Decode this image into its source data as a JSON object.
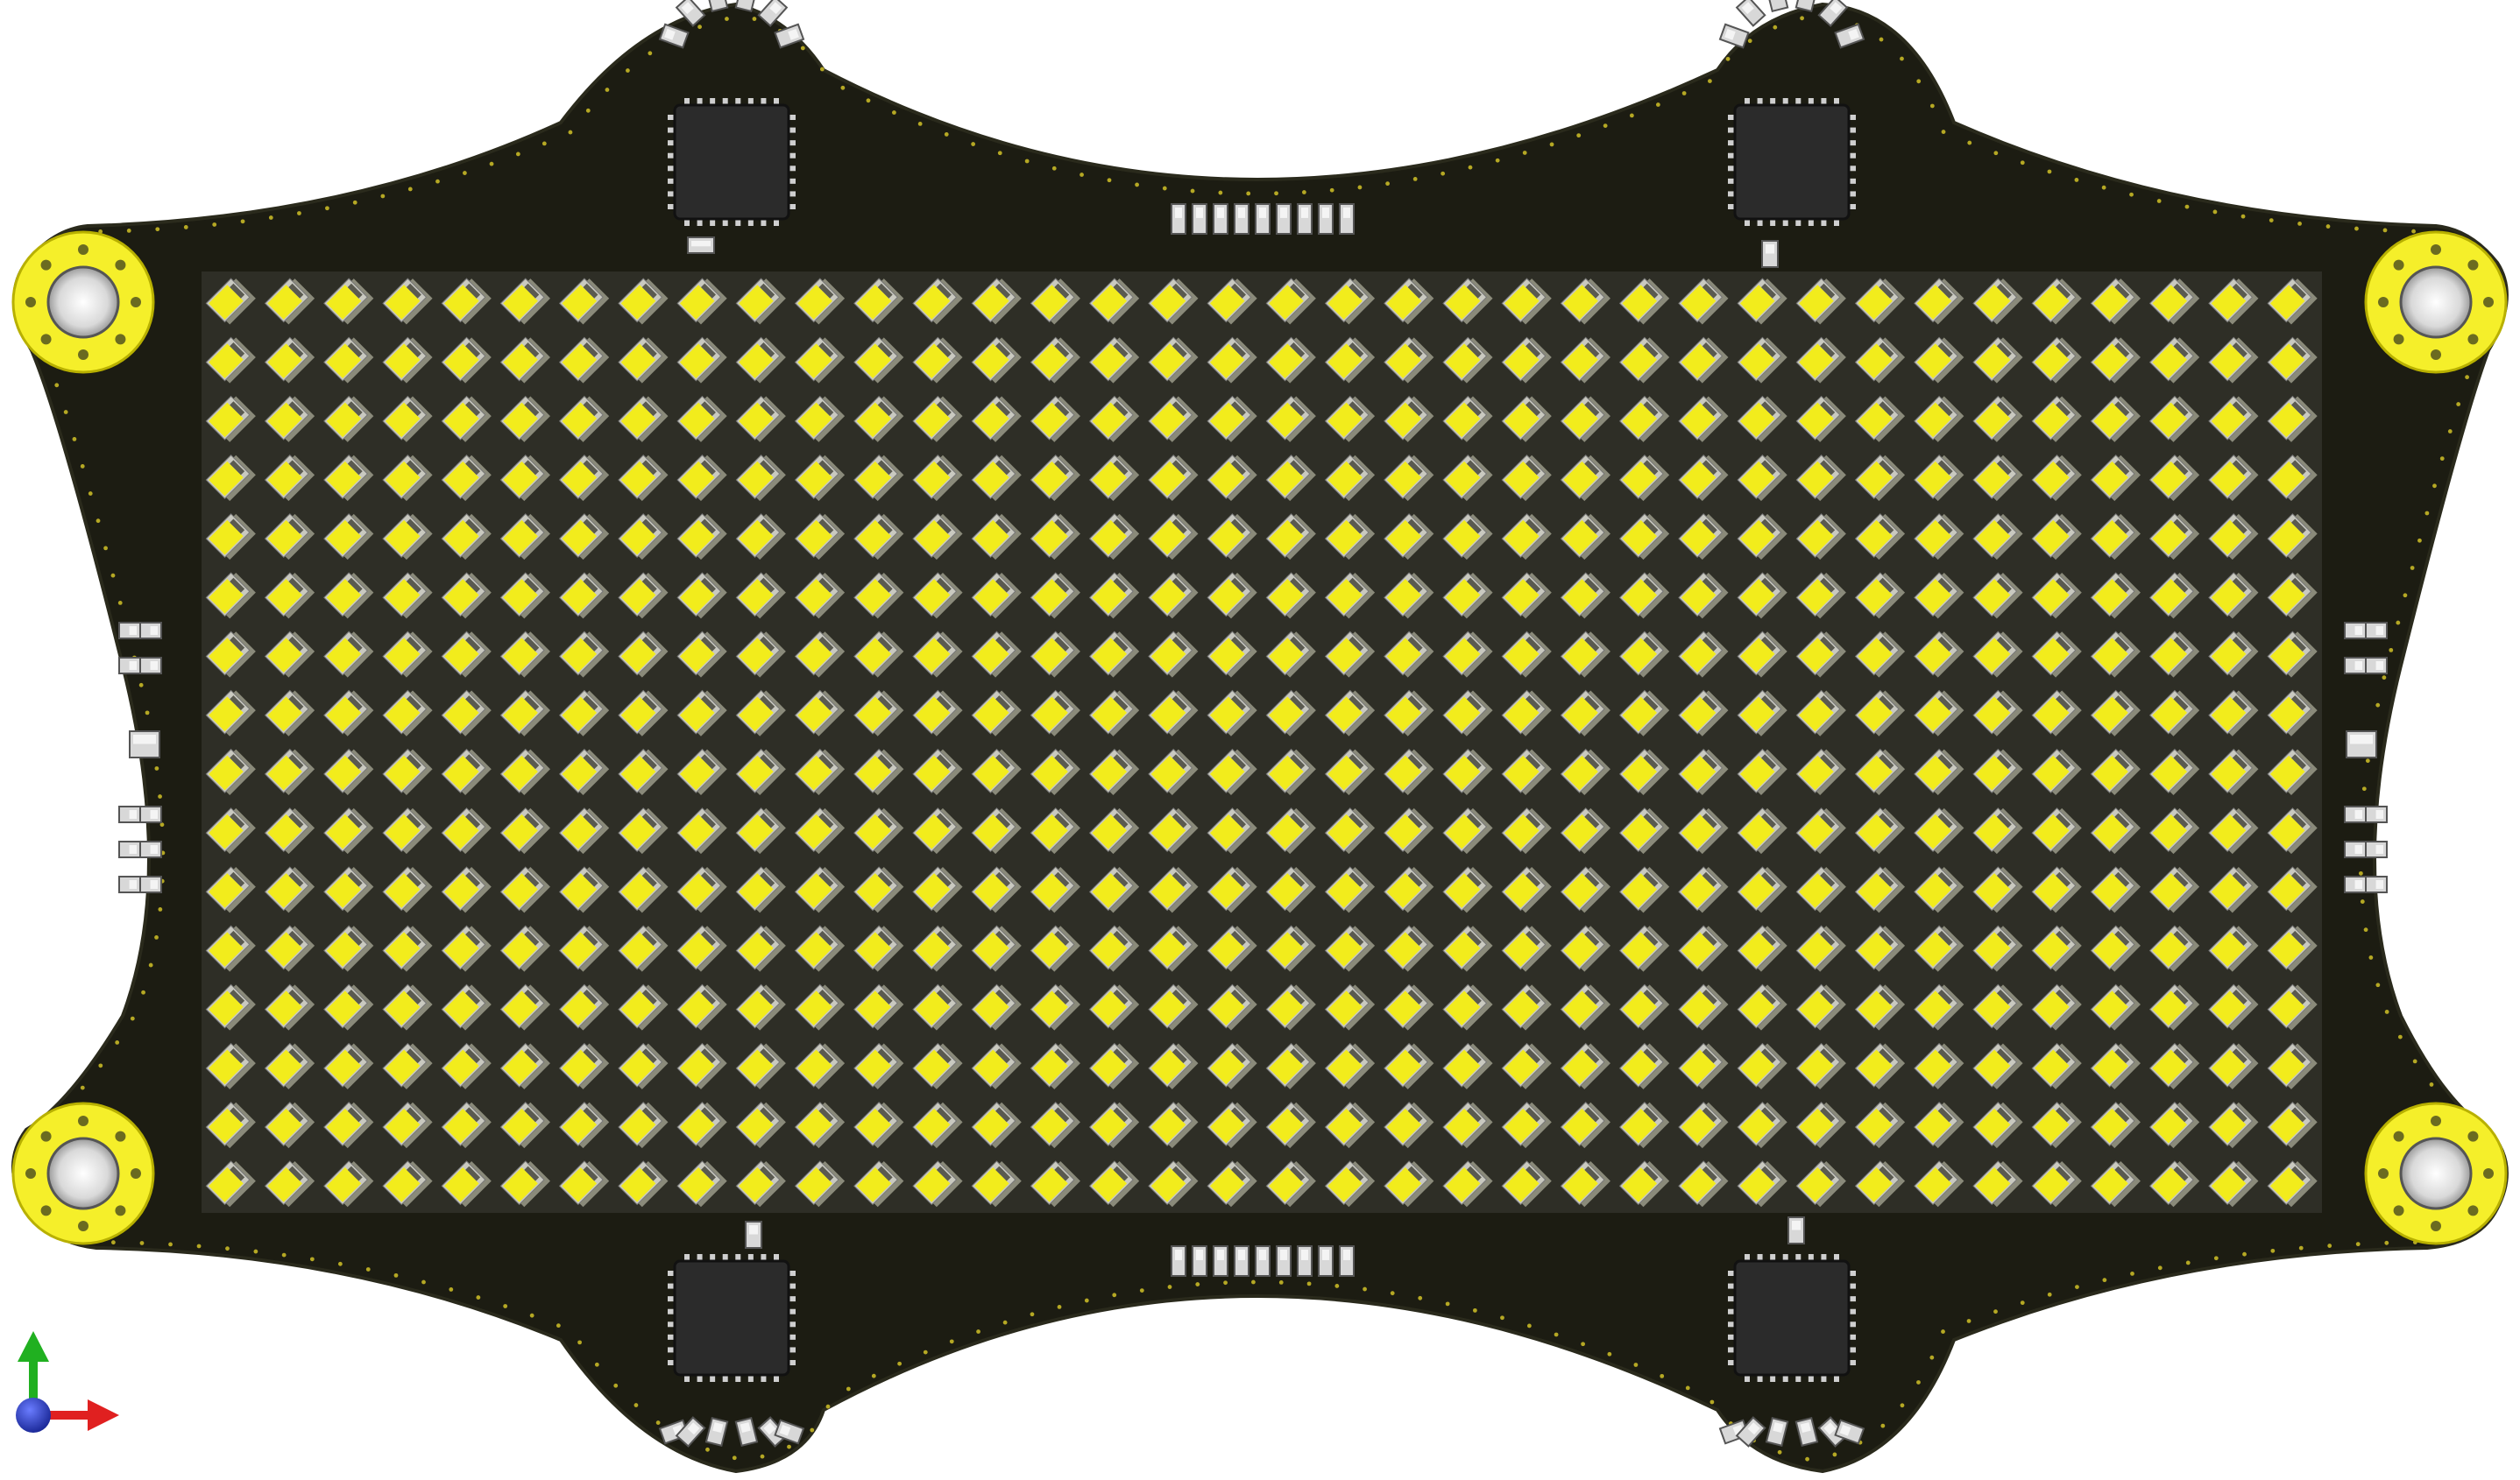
{
  "scene": {
    "subject": "pcb-render",
    "background_color": "#ffffff",
    "board_color": "#1c1c12",
    "board_edge_color": "#2a2a1c",
    "led_face_color": "#f2ec1c",
    "led_shadow_color": "#8a8a7a",
    "led_body_color": "#c9c9c0",
    "pad_color": "#f5ef2a",
    "ic_color": "#2b2b2b",
    "component_color": "#d8d8d8",
    "led_matrix": {
      "rows": 16,
      "columns": 36
    },
    "mounting_holes": 4,
    "ic_chips": 4
  },
  "axis_triad": {
    "x_axis_color": "#e02020",
    "y_axis_color": "#20b020",
    "z_axis_color": "#2030c0",
    "icons": [
      "axis-x-arrow-icon",
      "axis-y-arrow-icon",
      "axis-z-sphere-icon"
    ]
  }
}
